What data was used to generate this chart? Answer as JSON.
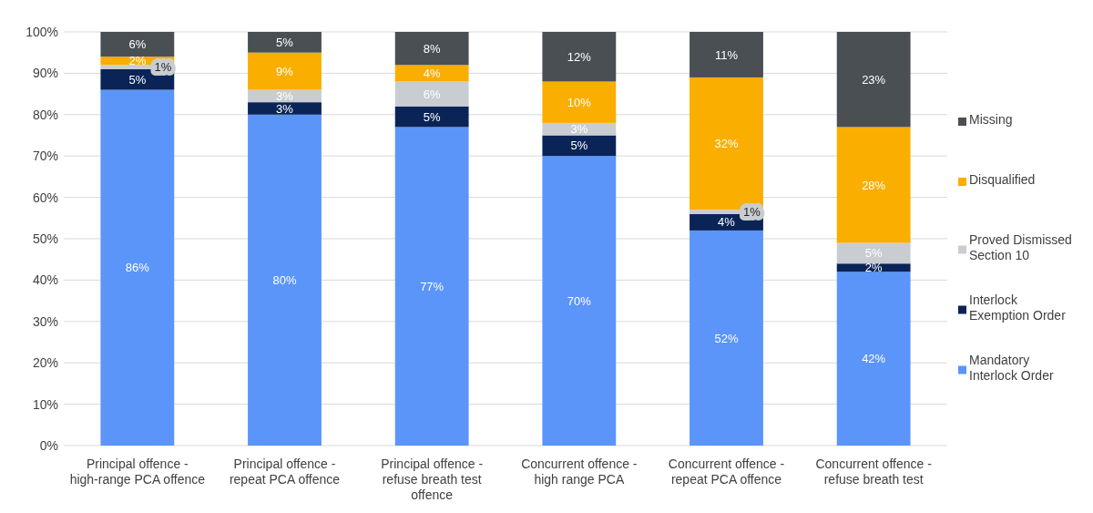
{
  "chart_data": {
    "type": "bar",
    "stacked": true,
    "categories": [
      "Principal offence - high-range PCA offence",
      "Principal offence - repeat PCA offence",
      "Principal offence - refuse breath test offence",
      "Concurrent offence - high range PCA",
      "Concurrent offence - repeat PCA offence",
      "Concurrent offence - refuse breath test"
    ],
    "series": [
      {
        "name": "Mandatory Interlock Order",
        "color": "#5b95f9",
        "values": [
          86,
          80,
          77,
          70,
          52,
          42
        ],
        "value_labels": [
          "86%",
          "80%",
          "77%",
          "70%",
          "52%",
          "42%"
        ]
      },
      {
        "name": "Interlock Exemption Order",
        "color": "#0a2458",
        "values": [
          5,
          3,
          5,
          5,
          4,
          2
        ],
        "value_labels": [
          "5%",
          "3%",
          "5%",
          "5%",
          "4%",
          "2%"
        ]
      },
      {
        "name": "Proved Dismissed Section 10",
        "color": "#c9cdd1",
        "values": [
          1,
          3,
          6,
          3,
          1,
          5
        ],
        "value_labels": [
          "1%",
          "3%",
          "6%",
          "3%",
          "1%",
          "5%"
        ]
      },
      {
        "name": "Disqualified",
        "color": "#f9ae00",
        "values": [
          2,
          9,
          4,
          10,
          32,
          28
        ],
        "value_labels": [
          "2%",
          "9%",
          "4%",
          "10%",
          "32%",
          "28%"
        ]
      },
      {
        "name": "Missing",
        "color": "#4a4f54",
        "values": [
          6,
          5,
          8,
          12,
          11,
          23
        ],
        "value_labels": [
          "6%",
          "5%",
          "8%",
          "12%",
          "11%",
          "23%"
        ]
      }
    ],
    "ylim": [
      0,
      100
    ],
    "yticks": [
      {
        "value": 0,
        "label": "0%"
      },
      {
        "value": 10,
        "label": "10%"
      },
      {
        "value": 20,
        "label": "20%"
      },
      {
        "value": 30,
        "label": "30%"
      },
      {
        "value": 40,
        "label": "40%"
      },
      {
        "value": 50,
        "label": "50%"
      },
      {
        "value": 60,
        "label": "60%"
      },
      {
        "value": 70,
        "label": "70%"
      },
      {
        "value": 80,
        "label": "80%"
      },
      {
        "value": 90,
        "label": "90%"
      },
      {
        "value": 100,
        "label": "100%"
      }
    ],
    "grid": "y",
    "legend": "right"
  }
}
